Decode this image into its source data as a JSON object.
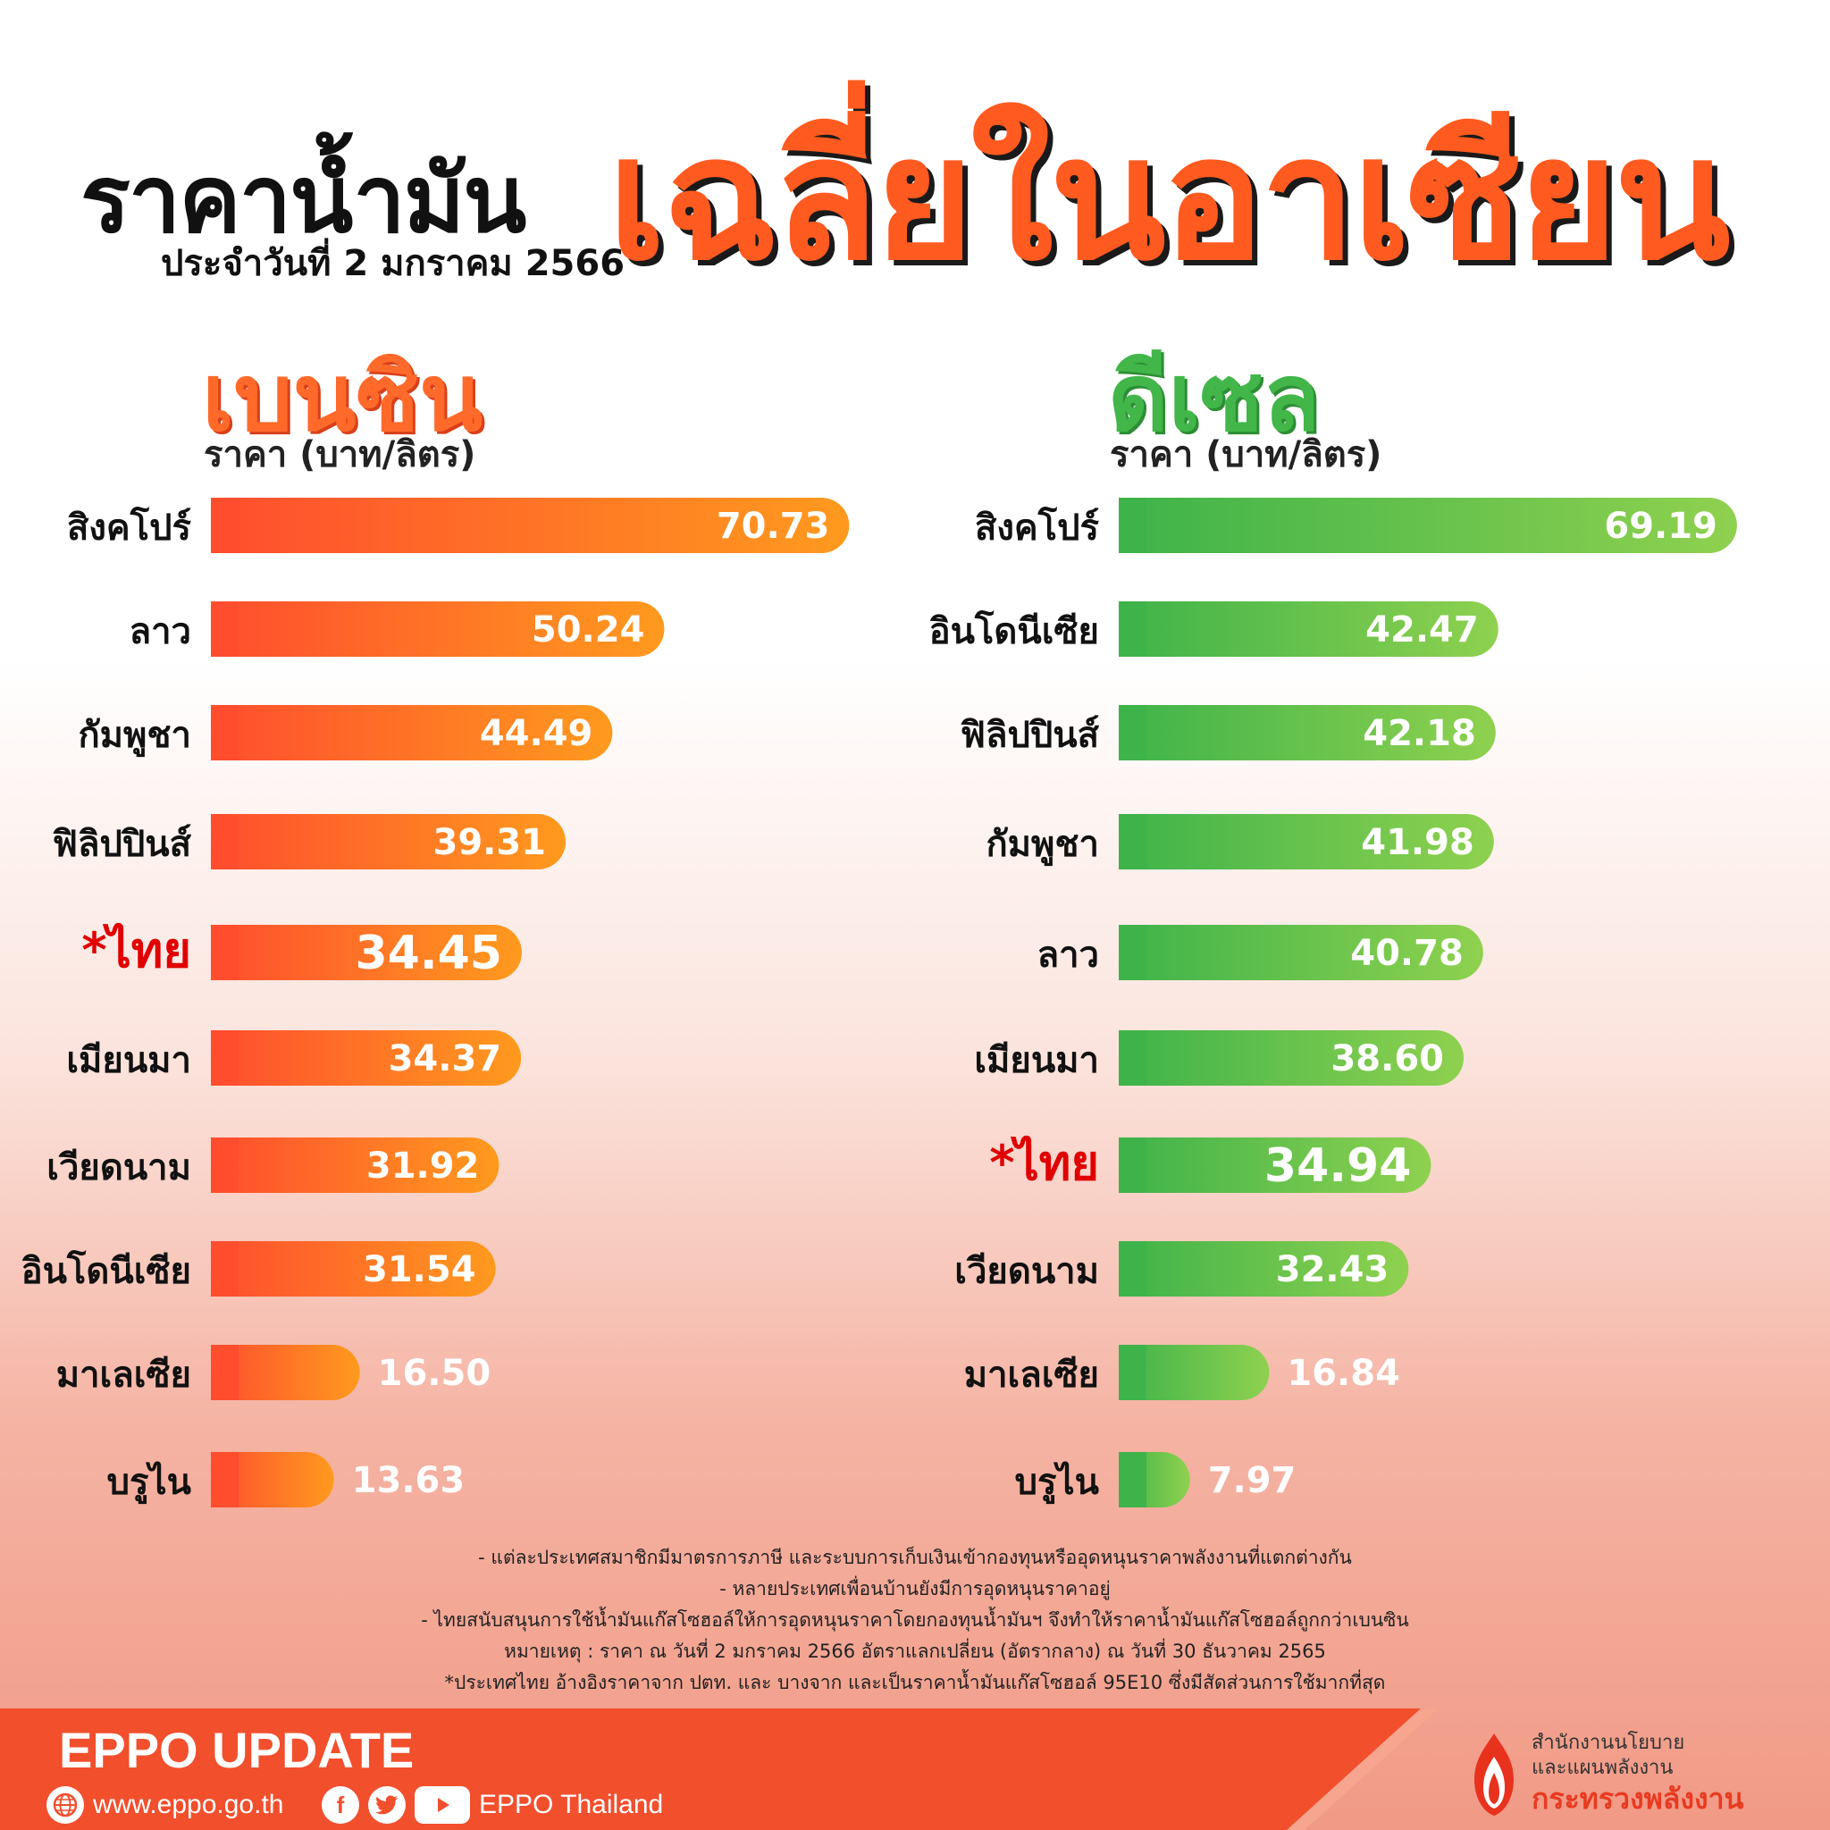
{
  "header": {
    "title_main": "ราคาน้ำมัน",
    "title_date": "ประจำวันที่ 2 มกราคม 2566",
    "title_accent": "เฉลี่ยในอาเซียน"
  },
  "colors": {
    "petrol_start": "#ff4d2e",
    "petrol_end": "#ff9a1e",
    "diesel_start": "#3eb34a",
    "diesel_end": "#8fd14f",
    "highlight": "#e00000"
  },
  "chart_data": [
    {
      "type": "bar",
      "title": "เบนซิน",
      "ylabel": "ราคา (บาท/ลิตร)",
      "categories": [
        "สิงคโปร์",
        "ลาว",
        "กัมพูชา",
        "ฟิลิปปินส์",
        "*ไทย",
        "เมียนมา",
        "เวียดนาม",
        "อินโดนีเซีย",
        "มาเลเซีย",
        "บรูไน"
      ],
      "values": [
        70.73,
        50.24,
        44.49,
        39.31,
        34.45,
        34.37,
        31.92,
        31.54,
        16.5,
        13.63
      ],
      "value_labels": [
        "70.73",
        "50.24",
        "44.49",
        "39.31",
        "34.45",
        "34.37",
        "31.92",
        "31.54",
        "16.50",
        "13.63"
      ],
      "highlight": "*ไทย",
      "orientation": "horizontal"
    },
    {
      "type": "bar",
      "title": "ดีเซล",
      "ylabel": "ราคา (บาท/ลิตร)",
      "categories": [
        "สิงคโปร์",
        "อินโดนีเซีย",
        "ฟิลิปปินส์",
        "กัมพูชา",
        "ลาว",
        "เมียนมา",
        "*ไทย",
        "เวียดนาม",
        "มาเลเซีย",
        "บรูไน"
      ],
      "values": [
        69.19,
        42.47,
        42.18,
        41.98,
        40.78,
        38.6,
        34.94,
        32.43,
        16.84,
        7.97
      ],
      "value_labels": [
        "69.19",
        "42.47",
        "42.18",
        "41.98",
        "40.78",
        "38.60",
        "34.94",
        "32.43",
        "16.84",
        "7.97"
      ],
      "highlight": "*ไทย",
      "orientation": "horizontal"
    }
  ],
  "notes": [
    "- แต่ละประเทศสมาชิกมีมาตรการภาษี และระบบการเก็บเงินเข้ากองทุนหรืออุดหนุนราคาพลังงานที่แตกต่างกัน",
    "- หลายประเทศเพื่อนบ้านยังมีการอุดหนุนราคาอยู่",
    "- ไทยสนับสนุนการใช้น้ำมันแก๊สโซฮอล์ให้การอุดหนุนราคาโดยกองทุนน้ำมันฯ จึงทำให้ราคาน้ำมันแก๊สโซฮอล์ถูกกว่าเบนซิน",
    "หมายเหตุ :   ราคา ณ วันที่ 2 มกราคม 2566 อัตราแลกเปลี่ยน (อัตรากลาง) ณ วันที่ 30 ธันวาคม 2565",
    "*ประเทศไทย อ้างอิงราคาจาก ปตท. และ บางจาก และเป็นราคาน้ำมันแก๊สโซฮอล์ 95E10 ซึ่งมีสัดส่วนการใช้มากที่สุด"
  ],
  "footer": {
    "label": "EPPO UPDATE",
    "website": "www.eppo.go.th",
    "social_name": "EPPO Thailand",
    "icons": [
      "globe-icon",
      "facebook-icon",
      "twitter-icon",
      "youtube-icon"
    ],
    "org_line1": "สำนักงานนโยบาย",
    "org_line2": "และแผนพลังงาน",
    "org_line3": "กระทรวงพลังงาน"
  }
}
